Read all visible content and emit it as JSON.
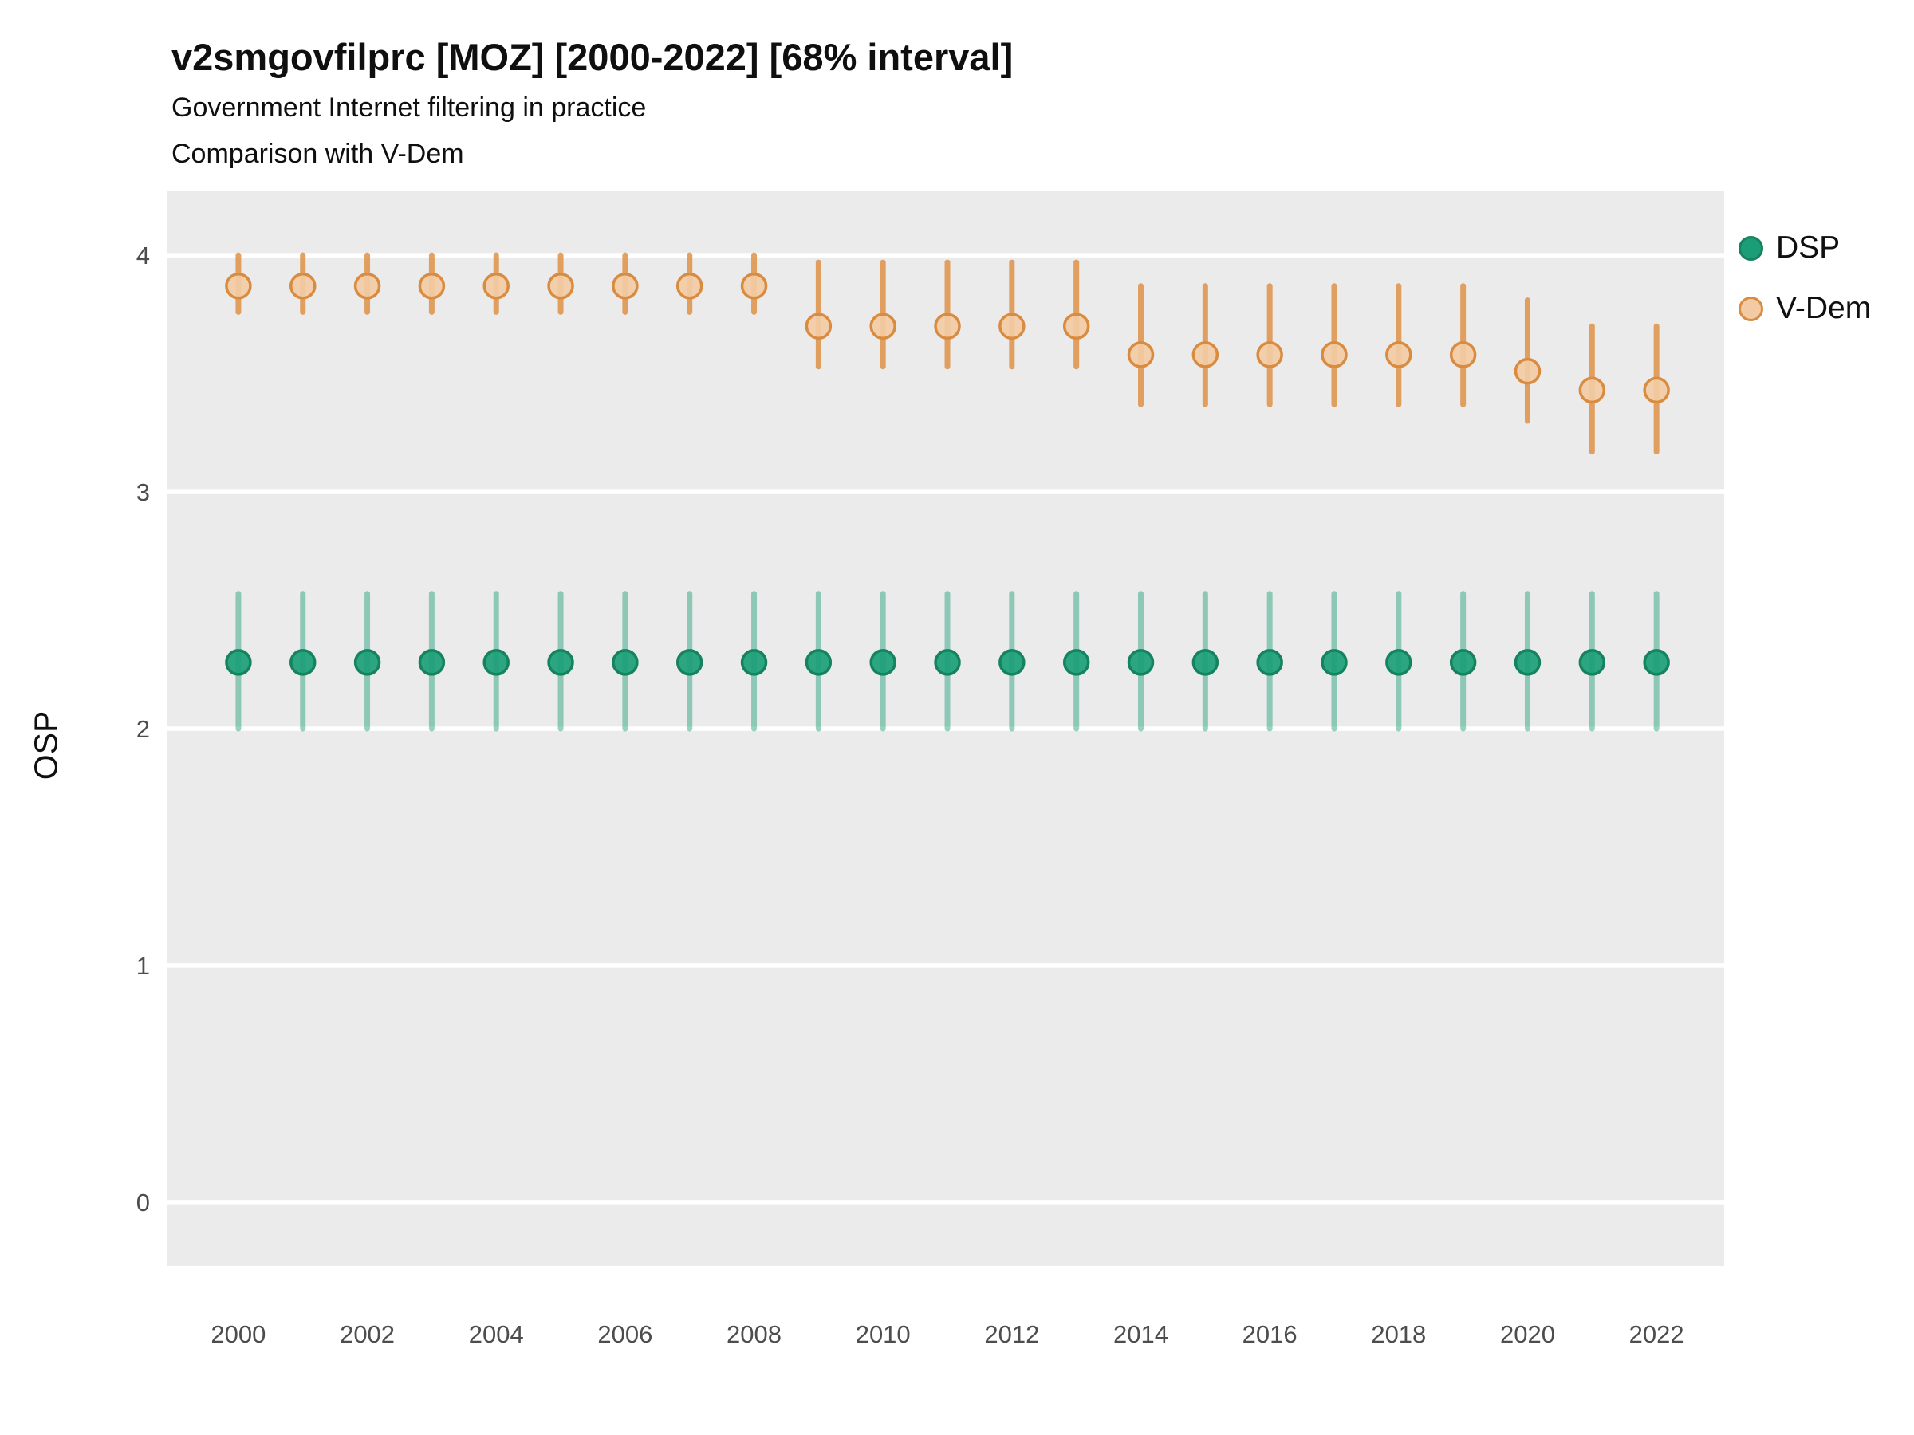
{
  "chart_data": {
    "type": "pointrange",
    "title": "v2smgovfilprc [MOZ] [2000-2022] [68% interval]",
    "subtitle1": "Government Internet filtering in practice",
    "subtitle2": "Comparison with V-Dem",
    "xlabel": "",
    "ylabel": "OSP",
    "interval": "68%",
    "years": [
      2000,
      2001,
      2002,
      2003,
      2004,
      2005,
      2006,
      2007,
      2008,
      2009,
      2010,
      2011,
      2012,
      2013,
      2014,
      2015,
      2016,
      2017,
      2018,
      2019,
      2020,
      2021,
      2022
    ],
    "x_ticks": [
      2000,
      2002,
      2004,
      2006,
      2008,
      2010,
      2012,
      2014,
      2016,
      2018,
      2020,
      2022
    ],
    "y_ticks": [
      0,
      1,
      2,
      3,
      4
    ],
    "xlim": [
      1998.9,
      2023.05
    ],
    "ylim": [
      -0.27,
      4.27
    ],
    "grid": "horizontal-major-only",
    "panel_bg": "#ebebeb",
    "grid_color": "#ffffff",
    "tick_label_color": "#4d4d4d",
    "legend_position": "right",
    "series": [
      {
        "name": "DSP",
        "point_fill": "#1b9e77",
        "point_stroke": "#15835f",
        "bar_color": "#1b9e77",
        "bar_opacity": 0.45,
        "est": [
          2.28,
          2.28,
          2.28,
          2.28,
          2.28,
          2.28,
          2.28,
          2.28,
          2.28,
          2.28,
          2.28,
          2.28,
          2.28,
          2.28,
          2.28,
          2.28,
          2.28,
          2.28,
          2.28,
          2.28,
          2.28,
          2.28,
          2.28
        ],
        "lo": [
          2.0,
          2.0,
          2.0,
          2.0,
          2.0,
          2.0,
          2.0,
          2.0,
          2.0,
          2.0,
          2.0,
          2.0,
          2.0,
          2.0,
          2.0,
          2.0,
          2.0,
          2.0,
          2.0,
          2.0,
          2.0,
          2.0,
          2.0
        ],
        "hi": [
          2.57,
          2.57,
          2.57,
          2.57,
          2.57,
          2.57,
          2.57,
          2.57,
          2.57,
          2.57,
          2.57,
          2.57,
          2.57,
          2.57,
          2.57,
          2.57,
          2.57,
          2.57,
          2.57,
          2.57,
          2.57,
          2.57,
          2.57
        ]
      },
      {
        "name": "V-Dem",
        "point_fill": "#f2cba4",
        "point_stroke": "#d98b3f",
        "bar_color": "#de9147",
        "bar_opacity": 0.85,
        "est": [
          3.87,
          3.87,
          3.87,
          3.87,
          3.87,
          3.87,
          3.87,
          3.87,
          3.87,
          3.7,
          3.7,
          3.7,
          3.7,
          3.7,
          3.58,
          3.58,
          3.58,
          3.58,
          3.58,
          3.58,
          3.51,
          3.43,
          3.43
        ],
        "lo": [
          3.76,
          3.76,
          3.76,
          3.76,
          3.76,
          3.76,
          3.76,
          3.76,
          3.76,
          3.53,
          3.53,
          3.53,
          3.53,
          3.53,
          3.37,
          3.37,
          3.37,
          3.37,
          3.37,
          3.37,
          3.3,
          3.17,
          3.17
        ],
        "hi": [
          4.0,
          4.0,
          4.0,
          4.0,
          4.0,
          4.0,
          4.0,
          4.0,
          4.0,
          3.97,
          3.97,
          3.97,
          3.97,
          3.97,
          3.87,
          3.87,
          3.87,
          3.87,
          3.87,
          3.87,
          3.81,
          3.7,
          3.7
        ]
      }
    ]
  }
}
